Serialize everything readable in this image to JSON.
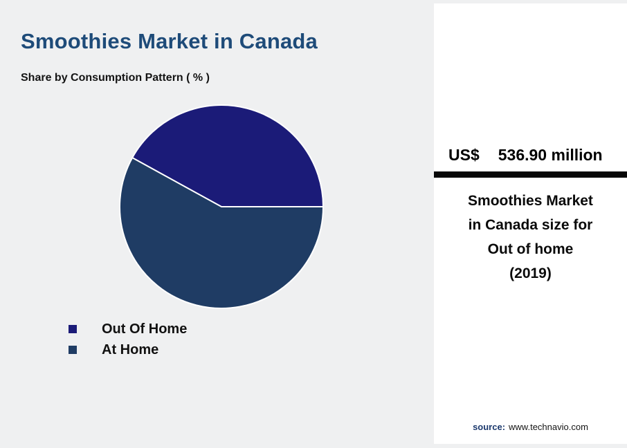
{
  "header": {
    "title": "Smoothies Market in Canada",
    "subtitle": "Share by Consumption Pattern ( % )"
  },
  "chart_data": {
    "type": "pie",
    "title": "Share by Consumption Pattern ( % )",
    "labels": [
      "Out Of Home",
      "At Home"
    ],
    "values": [
      42,
      58
    ],
    "unit": "%",
    "colors": [
      "#1b1b78",
      "#1f3c64"
    ],
    "start_angle_deg": 0,
    "direction": "counterclockwise",
    "legend_position": "bottom-left",
    "slice_stroke_color": "#ffffff"
  },
  "stat_panel": {
    "currency": "US$",
    "value": "536.90 million",
    "description_lines": [
      "Smoothies Market",
      "in Canada size for",
      "Out of home",
      "(2019)"
    ],
    "source_label": "source:",
    "source_value": "www.technavio.com"
  },
  "colors": {
    "title": "#1e4b79",
    "background": "#eff0f1",
    "panel_background": "#ffffff",
    "divider_bar": "#070707",
    "source_label": "#1d3a6e"
  }
}
